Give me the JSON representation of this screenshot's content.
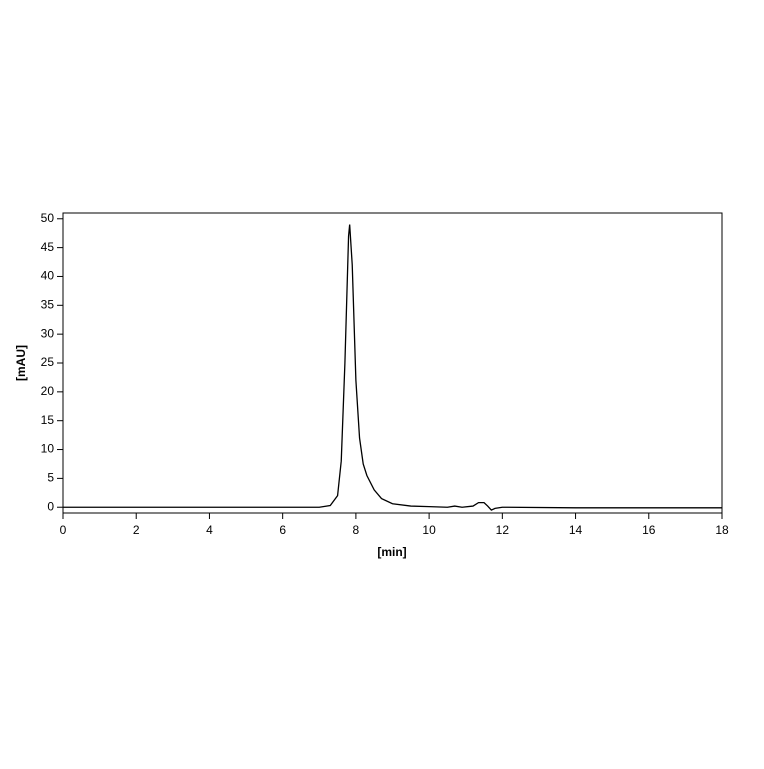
{
  "chart_data": {
    "type": "line",
    "x_label": "[min]",
    "y_label": "[mAU]",
    "x": [
      0,
      7.0,
      7.3,
      7.5,
      7.6,
      7.7,
      7.8,
      7.83,
      7.9,
      8.0,
      8.1,
      8.2,
      8.3,
      8.5,
      8.7,
      9.0,
      9.5,
      10.0,
      10.5,
      10.7,
      10.9,
      11.2,
      11.35,
      11.5,
      11.6,
      11.7,
      11.8,
      12.0,
      14.0,
      18.0
    ],
    "series": [
      {
        "color": "#000000",
        "values": [
          0,
          0,
          0.3,
          2,
          8,
          25,
          47,
          49,
          42,
          22,
          12,
          7.5,
          5.5,
          3,
          1.5,
          0.6,
          0.2,
          0.1,
          0,
          0.2,
          0,
          0.2,
          0.8,
          0.8,
          0.2,
          -0.5,
          -0.2,
          0,
          -0.1,
          -0.1
        ]
      }
    ],
    "xlim": [
      0,
      18
    ],
    "ylim": [
      -1,
      51
    ],
    "xticks": [
      0,
      2,
      4,
      6,
      8,
      10,
      12,
      14,
      16,
      18
    ],
    "yticks": [
      0,
      5,
      10,
      15,
      20,
      25,
      30,
      35,
      40,
      45,
      50
    ]
  }
}
